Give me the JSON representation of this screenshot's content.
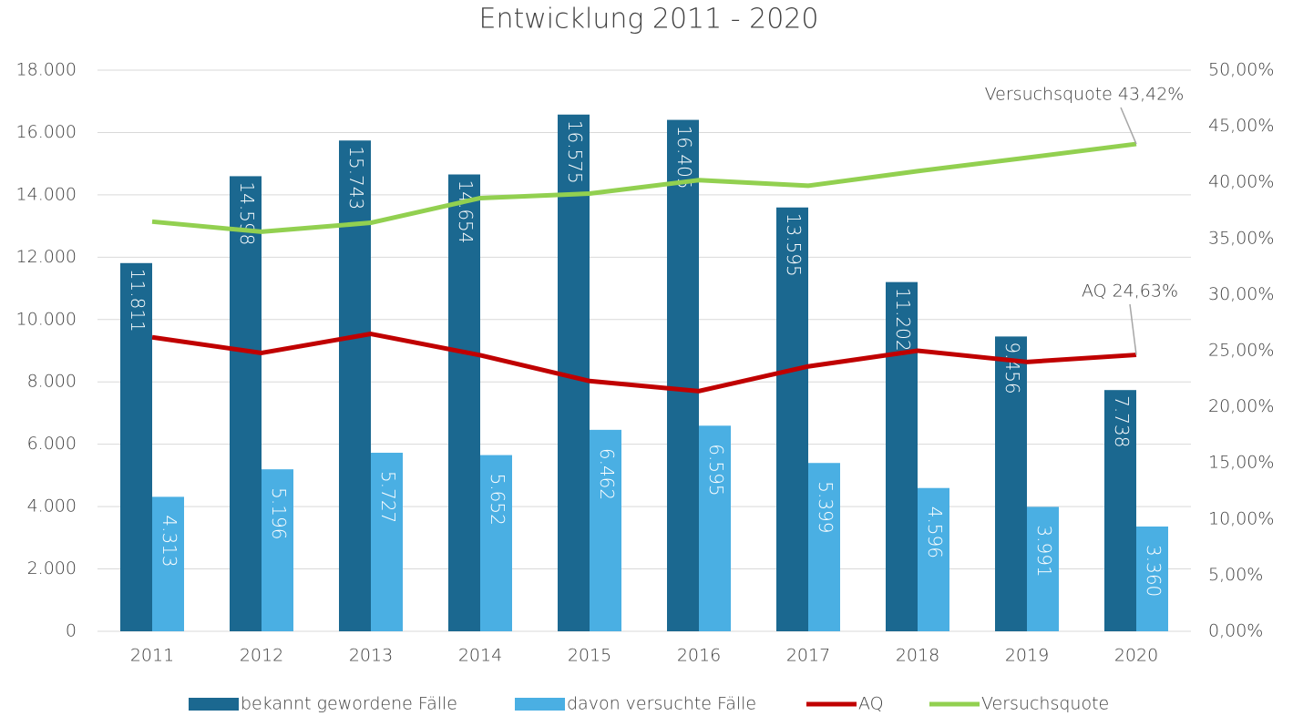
{
  "chart_data": {
    "type": "bar-line",
    "title": "Entwicklung 2011 - 2020",
    "categories": [
      "2011",
      "2012",
      "2013",
      "2014",
      "2015",
      "2016",
      "2017",
      "2018",
      "2019",
      "2020"
    ],
    "series": [
      {
        "name": "bekannt gewordene Fälle",
        "type": "bar",
        "color": "#1b6890",
        "values": [
          11811,
          14598,
          15743,
          14654,
          16575,
          16405,
          13595,
          11202,
          9456,
          7738
        ],
        "value_labels": [
          "11.811",
          "14.598",
          "15.743",
          "14.654",
          "16.575",
          "16.405",
          "13.595",
          "11.202",
          "9.456",
          "7.738"
        ]
      },
      {
        "name": "davon versuchte Fälle",
        "type": "bar",
        "color": "#4aafe3",
        "values": [
          4313,
          5196,
          5727,
          5652,
          6462,
          6595,
          5399,
          4596,
          3991,
          3360
        ],
        "value_labels": [
          "4.313",
          "5.196",
          "5.727",
          "5.652",
          "6.462",
          "6.595",
          "5.399",
          "4.596",
          "3.991",
          "3.360"
        ]
      },
      {
        "name": "AQ",
        "type": "line",
        "axis": "y2",
        "color": "#c00000",
        "values": [
          26.2,
          24.8,
          26.5,
          24.6,
          22.3,
          21.4,
          23.6,
          25.0,
          24.0,
          24.63
        ]
      },
      {
        "name": "Versuchsquote",
        "type": "line",
        "axis": "y2",
        "color": "#92d050",
        "values": [
          36.5,
          35.6,
          36.4,
          38.6,
          39.0,
          40.2,
          39.7,
          41.0,
          42.2,
          43.42
        ]
      }
    ],
    "annotations": [
      {
        "text": "Versuchsquote 43,42%",
        "series": 3
      },
      {
        "text": "AQ 24,63%",
        "series": 2
      }
    ],
    "ylim": [
      0,
      18000
    ],
    "yticks": [
      0,
      {
        "value": 2000,
        "label": "2.000"
      },
      {
        "value": 4000,
        "label": "4.000"
      },
      {
        "value": 6000,
        "label": "6.000"
      },
      {
        "value": 8000,
        "label": "8.000"
      },
      {
        "value": 10000,
        "label": "10.000"
      },
      {
        "value": 12000,
        "label": "12.000"
      },
      {
        "value": 14000,
        "label": "14.000"
      },
      {
        "value": 16000,
        "label": "16.000"
      },
      {
        "value": 18000,
        "label": "18.000"
      }
    ],
    "y2lim": [
      0,
      50
    ],
    "y2ticks": [
      {
        "value": 0,
        "label": "0,00%"
      },
      {
        "value": 5,
        "label": "5,00%"
      },
      {
        "value": 10,
        "label": "10,00%"
      },
      {
        "value": 15,
        "label": "15,00%"
      },
      {
        "value": 20,
        "label": "20,00%"
      },
      {
        "value": 25,
        "label": "25,00%"
      },
      {
        "value": 30,
        "label": "30,00%"
      },
      {
        "value": 35,
        "label": "35,00%"
      },
      {
        "value": 40,
        "label": "40,00%"
      },
      {
        "value": 45,
        "label": "45,00%"
      },
      {
        "value": 50,
        "label": "50,00%"
      }
    ],
    "grid": true,
    "legend": "bottom"
  }
}
